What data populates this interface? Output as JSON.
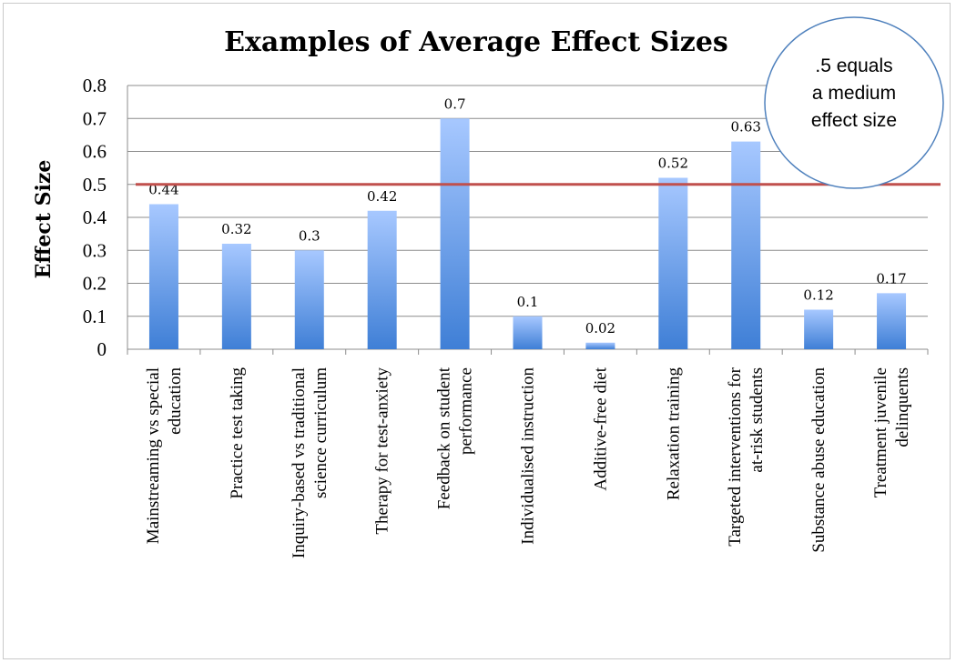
{
  "chart_data": {
    "type": "bar",
    "title": "Examples of Average Effect Sizes",
    "xlabel": "",
    "ylabel": "Effect Size",
    "ylim": [
      0,
      0.8
    ],
    "yticks": [
      "0",
      "0.1",
      "0.2",
      "0.3",
      "0.4",
      "0.5",
      "0.6",
      "0.7",
      "0.8"
    ],
    "grid": true,
    "categories": [
      [
        "Mainstreaming vs special",
        "education"
      ],
      [
        "Practice test taking"
      ],
      [
        "Inquiry-based vs traditional",
        "science curriculum"
      ],
      [
        "Therapy for test-anxiety"
      ],
      [
        "Feedback on student",
        "performance"
      ],
      [
        "Individualised instruction"
      ],
      [
        "Additive-free diet"
      ],
      [
        "Relaxation training"
      ],
      [
        "Targeted interventions for",
        "at-risk students"
      ],
      [
        "Substance abuse education"
      ],
      [
        "Treatment juvenile",
        "delinquents"
      ]
    ],
    "values": [
      0.44,
      0.32,
      0.3,
      0.42,
      0.7,
      0.1,
      0.02,
      0.52,
      0.63,
      0.12,
      0.17
    ],
    "data_labels": [
      "0.44",
      "0.32",
      "0.3",
      "0.42",
      "0.7",
      "0.1",
      "0.02",
      "0.52",
      "0.63",
      "0.12",
      "0.17"
    ],
    "reference_line": {
      "value": 0.5,
      "color": "#c0504d"
    },
    "callout": {
      "lines": [
        ".5 equals",
        "a medium",
        "effect size"
      ]
    },
    "colors": {
      "bar_top": "#a7c8ff",
      "bar_bottom": "#3f7fd6",
      "grid": "#8c8c8c",
      "callout_border": "#4f81bd"
    }
  }
}
